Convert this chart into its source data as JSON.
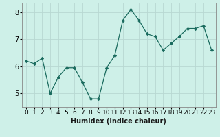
{
  "x": [
    0,
    1,
    2,
    3,
    4,
    5,
    6,
    7,
    8,
    9,
    10,
    11,
    12,
    13,
    14,
    15,
    16,
    17,
    18,
    19,
    20,
    21,
    22,
    23
  ],
  "y": [
    6.2,
    6.1,
    6.3,
    5.0,
    5.6,
    5.95,
    5.95,
    5.4,
    4.8,
    4.8,
    5.95,
    6.4,
    7.7,
    8.1,
    7.7,
    7.2,
    7.1,
    6.6,
    6.85,
    7.1,
    7.4,
    7.4,
    7.5,
    6.6
  ],
  "line_color": "#1a6b5e",
  "marker_color": "#1a6b5e",
  "bg_color": "#cef0e8",
  "grid_color": "#b8d8d2",
  "xlabel": "Humidex (Indice chaleur)",
  "ylim": [
    4.5,
    8.35
  ],
  "yticks": [
    5,
    6,
    7,
    8
  ],
  "xtick_labels": [
    "0",
    "1",
    "2",
    "3",
    "4",
    "5",
    "6",
    "7",
    "8",
    "9",
    "10",
    "11",
    "12",
    "13",
    "14",
    "15",
    "16",
    "17",
    "18",
    "19",
    "20",
    "21",
    "22",
    "23"
  ],
  "xlabel_fontsize": 7,
  "tick_fontsize": 6.5,
  "ytick_fontsize": 7
}
